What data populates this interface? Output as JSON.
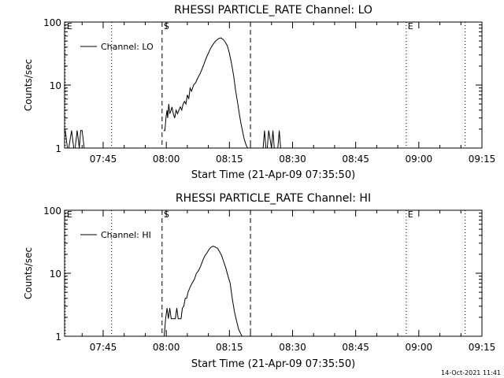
{
  "timestamp": "14-Oct-2021 11:41",
  "colors": {
    "background": "#ffffff",
    "foreground": "#000000"
  },
  "chart_data": [
    {
      "type": "line",
      "title": "RHESSI PARTICLE_RATE Channel: LO",
      "xlabel": "Start Time (21-Apr-09 07:35:50)",
      "ylabel": "Counts/sec",
      "y_scale": "log",
      "ylim": [
        1,
        100
      ],
      "xlim": [
        "07:35:50",
        "09:15"
      ],
      "x_ticks": [
        "07:45",
        "08:00",
        "08:15",
        "08:30",
        "08:45",
        "09:00",
        "09:15"
      ],
      "y_ticks": [
        "1",
        "10",
        "100"
      ],
      "legend": {
        "position": "top-left",
        "entries": [
          "Channel: LO"
        ]
      },
      "markers": [
        {
          "label": "E",
          "time": "07:36",
          "style": "dotted"
        },
        {
          "label": "",
          "time": "07:47",
          "style": "dotted"
        },
        {
          "label": "S",
          "time": "07:59",
          "style": "dashed"
        },
        {
          "label": "",
          "time": "08:20",
          "style": "dashed"
        },
        {
          "label": "E",
          "time": "08:57",
          "style": "dotted"
        },
        {
          "label": "",
          "time": "09:11",
          "style": "dotted"
        }
      ],
      "segments": [
        {
          "x": [
            "07:36:00",
            "07:36:30",
            "07:36:50",
            "07:37:30",
            "07:38:00",
            "07:38:20",
            "07:38:50",
            "07:39:20",
            "07:39:40",
            "07:40:00",
            "07:40:30"
          ],
          "y": [
            1.9,
            1,
            1,
            1.9,
            1,
            1,
            1.9,
            1,
            1.9,
            1.9,
            1
          ]
        },
        {
          "x": [
            "07:59:20",
            "07:59:40",
            "07:59:55",
            "08:00:10",
            "08:00:20",
            "08:00:35",
            "08:00:50",
            "08:01:10",
            "08:01:20",
            "08:01:40",
            "08:02:00",
            "08:02:20",
            "08:02:40",
            "08:03:00",
            "08:03:20",
            "08:03:40",
            "08:04:00",
            "08:04:20",
            "08:04:40",
            "08:05:00",
            "08:05:20",
            "08:05:40",
            "08:06:00",
            "08:06:30",
            "08:07:00",
            "08:07:30",
            "08:08:00",
            "08:08:30",
            "08:09:00",
            "08:09:30",
            "08:10:00",
            "08:10:30",
            "08:11:00",
            "08:11:30",
            "08:12:00",
            "08:12:30",
            "08:13:00",
            "08:13:30",
            "08:14:00",
            "08:14:30",
            "08:15:00",
            "08:15:30",
            "08:16:00",
            "08:16:30",
            "08:17:00",
            "08:17:30",
            "08:18:00",
            "08:18:30",
            "08:19:00",
            "08:19:20"
          ],
          "y": [
            1.9,
            1.9,
            3,
            4,
            3,
            5,
            3.5,
            4,
            4.5,
            3.5,
            3,
            4,
            3.5,
            4,
            4.5,
            4,
            5,
            5.5,
            5,
            7,
            6,
            9,
            8,
            10,
            11,
            13,
            15,
            18,
            22,
            27,
            32,
            38,
            43,
            48,
            52,
            55,
            56,
            53,
            48,
            42,
            32,
            22,
            14,
            8,
            5,
            3,
            2,
            1.4,
            1.1,
            1
          ]
        },
        {
          "x": [
            "08:23:00",
            "08:23:20",
            "08:23:40",
            "08:24:00",
            "08:24:20",
            "08:25:00",
            "08:25:20",
            "08:25:40",
            "08:26:30",
            "08:26:50",
            "08:27:10"
          ],
          "y": [
            1,
            1.9,
            1,
            1,
            1.9,
            1,
            1.9,
            1,
            1,
            1.9,
            1
          ]
        }
      ]
    },
    {
      "type": "line",
      "title": "RHESSI PARTICLE_RATE Channel: HI",
      "xlabel": "Start Time (21-Apr-09 07:35:50)",
      "ylabel": "Counts/sec",
      "y_scale": "log",
      "ylim": [
        1,
        100
      ],
      "xlim": [
        "07:35:50",
        "09:15"
      ],
      "x_ticks": [
        "07:45",
        "08:00",
        "08:15",
        "08:30",
        "08:45",
        "09:00",
        "09:15"
      ],
      "y_ticks": [
        "1",
        "10",
        "100"
      ],
      "legend": {
        "position": "top-left",
        "entries": [
          "Channel: HI"
        ]
      },
      "markers": [
        {
          "label": "E",
          "time": "07:36",
          "style": "dotted"
        },
        {
          "label": "",
          "time": "07:47",
          "style": "dotted"
        },
        {
          "label": "S",
          "time": "07:59",
          "style": "dashed"
        },
        {
          "label": "",
          "time": "08:20",
          "style": "dashed"
        },
        {
          "label": "E",
          "time": "08:57",
          "style": "dotted"
        },
        {
          "label": "",
          "time": "09:11",
          "style": "dotted"
        }
      ],
      "segments": [
        {
          "x": [
            "07:59:30",
            "07:59:50",
            "08:00:10",
            "08:00:30",
            "08:00:50",
            "08:01:10",
            "08:01:30",
            "08:01:50",
            "08:02:10",
            "08:02:30",
            "08:02:50",
            "08:03:10",
            "08:03:30",
            "08:03:50",
            "08:04:10",
            "08:04:30",
            "08:04:50",
            "08:05:10",
            "08:05:40",
            "08:06:10",
            "08:06:40",
            "08:07:10",
            "08:07:40",
            "08:08:10",
            "08:08:40",
            "08:09:10",
            "08:09:40",
            "08:10:10",
            "08:10:40",
            "08:11:10",
            "08:11:40",
            "08:12:10",
            "08:12:40",
            "08:13:10",
            "08:13:40",
            "08:14:10",
            "08:14:40",
            "08:15:10",
            "08:15:40",
            "08:16:10",
            "08:16:40",
            "08:17:10",
            "08:17:40",
            "08:18:00"
          ],
          "y": [
            1,
            1.9,
            2.8,
            1.9,
            2.8,
            1.9,
            1.9,
            1.9,
            1.9,
            2.8,
            1.9,
            1.9,
            1.9,
            2.8,
            3,
            4,
            4,
            5,
            6,
            7,
            8,
            10,
            11,
            13,
            16,
            19,
            21,
            24,
            26,
            27,
            26,
            25,
            22,
            19,
            15,
            12,
            9,
            7,
            4,
            2.5,
            1.8,
            1.3,
            1.1,
            1
          ]
        }
      ]
    }
  ]
}
